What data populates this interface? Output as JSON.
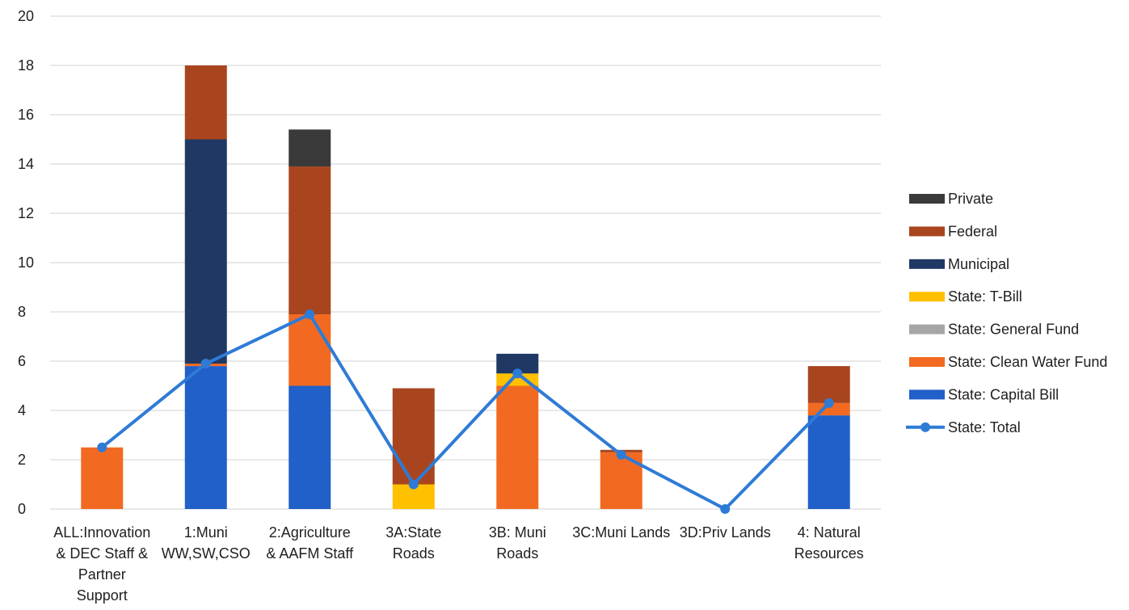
{
  "chart_data": {
    "type": "bar",
    "stacked": true,
    "title": "",
    "xlabel": "",
    "ylabel": "",
    "ylim": [
      0,
      20
    ],
    "yticks": [
      0,
      2,
      4,
      6,
      8,
      10,
      12,
      14,
      16,
      18,
      20
    ],
    "grid": true,
    "legend_position": "right",
    "categories": [
      [
        "ALL:Innovation",
        "& DEC Staff &",
        "Partner",
        "Support"
      ],
      [
        "1:Muni",
        "WW,SW,CSO"
      ],
      [
        "2:Agriculture",
        "& AAFM Staff"
      ],
      [
        "3A:State",
        "Roads"
      ],
      [
        "3B: Muni",
        "Roads"
      ],
      [
        "3C:Muni Lands"
      ],
      [
        "3D:Priv Lands"
      ],
      [
        "4: Natural",
        "Resources"
      ]
    ],
    "series": [
      {
        "name": "State: Capital Bill",
        "color": "#2060c8",
        "values": [
          0,
          5.8,
          5.0,
          0,
          0,
          0,
          0,
          3.8
        ]
      },
      {
        "name": "State: Clean Water Fund",
        "color": "#f26a21",
        "values": [
          2.5,
          0.1,
          2.9,
          0,
          5.0,
          2.3,
          0,
          0.5
        ]
      },
      {
        "name": "State: General Fund",
        "color": "#a6a6a6",
        "values": [
          0,
          0,
          0,
          0,
          0,
          0,
          0,
          0
        ]
      },
      {
        "name": "State: T-Bill",
        "color": "#ffc000",
        "values": [
          0,
          0,
          0,
          1.0,
          0.5,
          0,
          0,
          0
        ]
      },
      {
        "name": "Municipal",
        "color": "#1f3864",
        "values": [
          0,
          9.1,
          0,
          0,
          0.8,
          0,
          0,
          0
        ]
      },
      {
        "name": "Federal",
        "color": "#a9451e",
        "values": [
          0,
          3.0,
          6.0,
          3.9,
          0,
          0.1,
          0,
          1.5
        ]
      },
      {
        "name": "Private",
        "color": "#3a3a3a",
        "values": [
          0,
          0,
          1.5,
          0,
          0,
          0,
          0,
          0
        ]
      }
    ],
    "line_series": {
      "name": "State: Total",
      "color": "#2e7bd6",
      "values": [
        2.5,
        5.9,
        7.9,
        1.0,
        5.5,
        2.2,
        0,
        4.3
      ]
    },
    "legend_order": [
      "Private",
      "Federal",
      "Municipal",
      "State: T-Bill",
      "State: General Fund",
      "State: Clean Water Fund",
      "State: Capital Bill",
      "State: Total"
    ]
  }
}
